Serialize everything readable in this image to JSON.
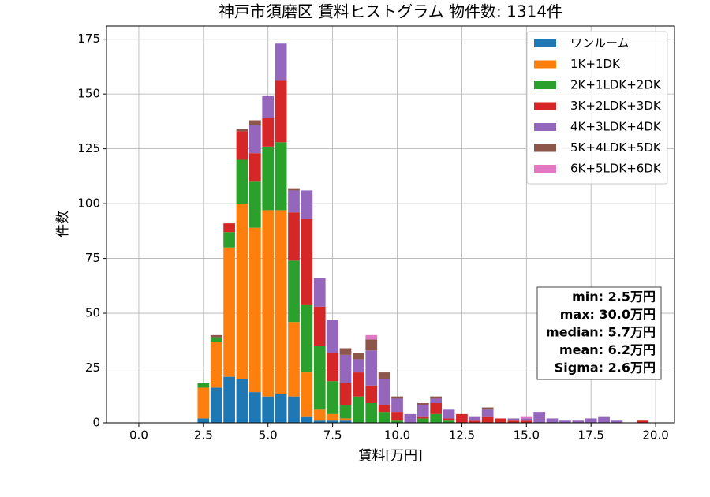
{
  "chart_data": {
    "type": "histogram",
    "title": "神戸市須磨区 賃料ヒストグラム  物件数: 1314件",
    "xlabel": "賃料[万円]",
    "ylabel": "件数",
    "stacked": true,
    "grid": true,
    "legend": "upper right",
    "bins": [
      2.25,
      2.75,
      3.25,
      3.75,
      4.25,
      4.75,
      5.25,
      5.75,
      6.25,
      6.75,
      7.25,
      7.75,
      8.25,
      8.75,
      9.25,
      9.75,
      10.25,
      10.75,
      11.25,
      11.75,
      12.25,
      12.75,
      13.25,
      13.75,
      14.25,
      14.75,
      15.25,
      15.75,
      16.25,
      16.75,
      17.25,
      17.75,
      18.25,
      18.75,
      19.25,
      19.75
    ],
    "series": [
      {
        "name": "ワンルーム",
        "color": "#1f77b4",
        "values": [
          2,
          16,
          21,
          20,
          14,
          12,
          13,
          12,
          3,
          1,
          1,
          1,
          0,
          0,
          0,
          0,
          0,
          0,
          0,
          0,
          0,
          0,
          0,
          0,
          0,
          0,
          0,
          0,
          0,
          0,
          0,
          0,
          0,
          0,
          0
        ]
      },
      {
        "name": "1K+1DK",
        "color": "#ff7f0e",
        "values": [
          14,
          21,
          59,
          80,
          75,
          85,
          84,
          34,
          20,
          5,
          3,
          1,
          0,
          0,
          0,
          0,
          0,
          0,
          0,
          0,
          0,
          0,
          0,
          0,
          0,
          0,
          0,
          0,
          0,
          0,
          0,
          0,
          0,
          0,
          0
        ]
      },
      {
        "name": "2K+1LDK+2DK",
        "color": "#2ca02c",
        "values": [
          2,
          2,
          7,
          20,
          21,
          29,
          31,
          28,
          31,
          29,
          15,
          6,
          12,
          9,
          5,
          1,
          0,
          2,
          4,
          1,
          0,
          0,
          0,
          0,
          0,
          0,
          0,
          0,
          0,
          0,
          0,
          0,
          0,
          0,
          0
        ]
      },
      {
        "name": "3K+2LDK+3DK",
        "color": "#d62728",
        "values": [
          0,
          0,
          4,
          13,
          13,
          13,
          28,
          22,
          39,
          18,
          13,
          10,
          11,
          8,
          3,
          4,
          0,
          1,
          5,
          1,
          4,
          1,
          3,
          2,
          1,
          1,
          0,
          0,
          0,
          0,
          0,
          0,
          0,
          0,
          1
        ]
      },
      {
        "name": "4K+3LDK+4DK",
        "color": "#9467bd",
        "values": [
          0,
          0,
          0,
          0,
          13,
          10,
          17,
          10,
          13,
          13,
          15,
          13,
          6,
          16,
          12,
          6,
          4,
          5,
          2,
          4,
          0,
          2,
          3,
          0,
          1,
          1,
          5,
          2,
          1,
          1,
          2,
          3,
          1,
          0,
          0
        ]
      },
      {
        "name": "5K+4LDK+5DK",
        "color": "#8c564b",
        "values": [
          0,
          1,
          0,
          1,
          2,
          0,
          0,
          1,
          0,
          0,
          0,
          3,
          3,
          5,
          3,
          1,
          0,
          1,
          1,
          0,
          0,
          0,
          1,
          0,
          0,
          0,
          0,
          0,
          0,
          0,
          0,
          0,
          0,
          0,
          0
        ]
      },
      {
        "name": "6K+5LDK+6DK",
        "color": "#e377c2",
        "values": [
          0,
          0,
          0,
          0,
          0,
          0,
          0,
          0,
          0,
          0,
          0,
          0,
          0,
          2,
          0,
          0,
          0,
          0,
          0,
          0,
          0,
          0,
          0,
          0,
          0,
          1,
          0,
          0,
          0,
          0,
          0,
          0,
          0,
          0,
          0
        ]
      }
    ],
    "xlim": [
      -1.25,
      20.73
    ],
    "ylim": [
      0,
      181
    ],
    "xticks": [
      {
        "value": 0,
        "label": "0.0"
      },
      2.5,
      {
        "value": 5,
        "label": "5.0"
      },
      7.5,
      {
        "value": 10,
        "label": "10.0"
      },
      12.5,
      {
        "value": 15,
        "label": "15.0"
      },
      17.5,
      {
        "value": 20,
        "label": "20.0"
      }
    ],
    "yticks": [
      0,
      25,
      50,
      75,
      100,
      125,
      150,
      175
    ],
    "annotations": [
      "min: 2.5万円",
      "max: 30.0万円",
      "median: 5.7万円",
      "mean: 6.2万円",
      "Sigma: 2.6万円"
    ]
  }
}
